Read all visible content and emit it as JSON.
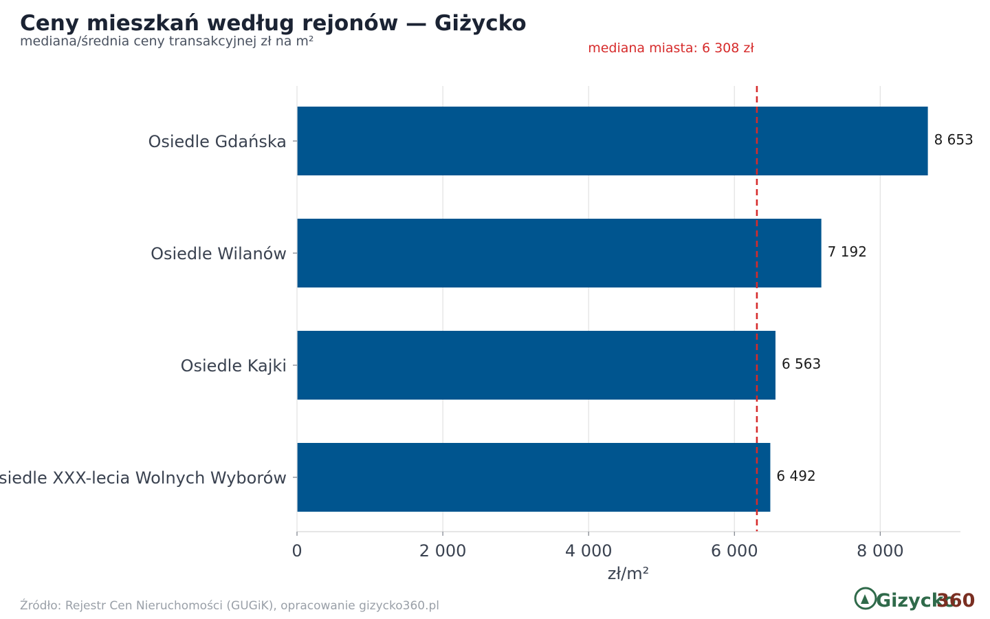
{
  "chart_data": {
    "type": "bar",
    "orientation": "horizontal",
    "title": "Ceny mieszkań według rejonów — Giżycko",
    "subtitle": "mediana/średnia ceny transakcyjnej zł na m²",
    "xlabel": "zł/m²",
    "ylabel": "",
    "categories": [
      "Osiedle Gdańska",
      "Osiedle Wilanów",
      "Osiedle Kajki",
      "Osiedle XXX-lecia Wolnych Wyborów"
    ],
    "values": [
      8653,
      7192,
      6563,
      6492
    ],
    "value_labels": [
      "8 653",
      "7 192",
      "6 563",
      "6 492"
    ],
    "xlim": [
      0,
      9100
    ],
    "xticks": [
      0,
      2000,
      4000,
      6000,
      8000
    ],
    "xtick_labels": [
      "0",
      "2 000",
      "4 000",
      "6 000",
      "8 000"
    ],
    "grid": true,
    "reference_line": {
      "value": 6308,
      "label": "mediana miasta: 6 308 zł",
      "color": "#d62b2b"
    },
    "bar_color": "#00558f",
    "source": "Źródło: Rejestr Cen Nieruchomości (GUGiK), opracowanie gizycko360.pl"
  },
  "logo": {
    "text_main": "Gizycko",
    "text_num": "360"
  }
}
